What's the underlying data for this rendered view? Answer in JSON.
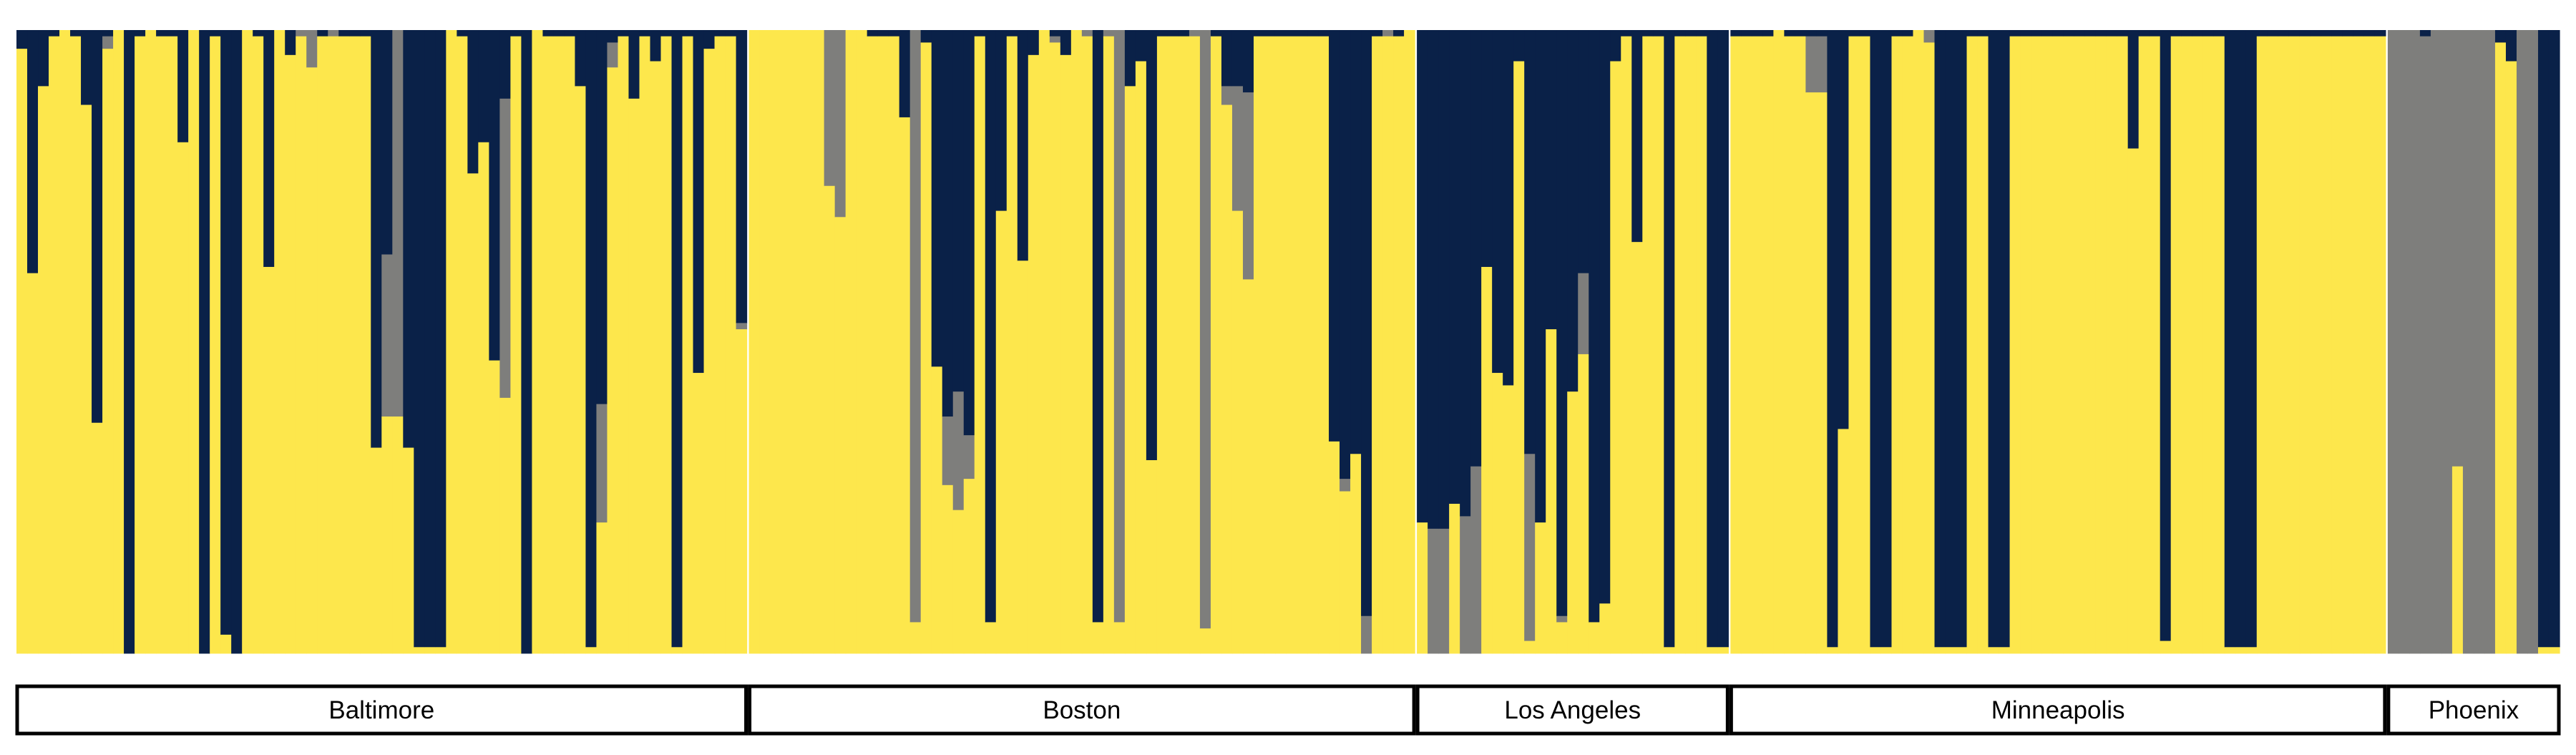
{
  "chart_data": {
    "type": "bar",
    "stacked": true,
    "normalized": true,
    "colors": {
      "yellow": "#FDE74C",
      "navy": "#0A2148",
      "gray": "#7E7E7C"
    },
    "groups": [
      {
        "label": "Baltimore",
        "bars": [
          [
            0.97,
            0.03,
            0
          ],
          [
            0.61,
            0.39,
            0
          ],
          [
            0.91,
            0.09,
            0
          ],
          [
            0.99,
            0.01,
            0
          ],
          [
            1,
            0,
            0
          ],
          [
            0.99,
            0.01,
            0
          ],
          [
            0.88,
            0.12,
            0
          ],
          [
            0.37,
            0.63,
            0
          ],
          [
            0.97,
            0.01,
            0.02
          ],
          [
            1,
            0,
            0
          ],
          [
            0,
            1,
            0
          ],
          [
            0.99,
            0.01,
            0
          ],
          [
            1,
            0,
            0
          ],
          [
            0.99,
            0.01,
            0
          ],
          [
            0.99,
            0.01,
            0
          ],
          [
            0.82,
            0.18,
            0
          ],
          [
            1,
            0,
            0
          ],
          [
            0,
            1,
            0
          ],
          [
            0.99,
            0.01,
            0
          ],
          [
            0.03,
            0.97,
            0
          ],
          [
            0,
            1,
            0
          ],
          [
            1,
            0,
            0
          ],
          [
            0.99,
            0.01,
            0
          ],
          [
            0.62,
            0.38,
            0
          ],
          [
            1,
            0,
            0
          ],
          [
            0.96,
            0.04,
            0
          ],
          [
            0.99,
            0,
            0.01
          ],
          [
            0.94,
            0,
            0.06
          ],
          [
            0.99,
            0.01,
            0
          ],
          [
            0.99,
            0,
            0.01
          ],
          [
            0.99,
            0.01,
            0
          ],
          [
            0.99,
            0.01,
            0
          ],
          [
            0.99,
            0.01,
            0
          ],
          [
            0.33,
            0.67,
            0
          ],
          [
            0.38,
            0.36,
            0.26
          ],
          [
            0.38,
            0,
            0.62
          ],
          [
            0.33,
            0.67,
            0
          ],
          [
            0.01,
            0.99,
            0
          ],
          [
            0.01,
            0.99,
            0
          ],
          [
            0.01,
            0.99,
            0
          ],
          [
            1,
            0,
            0
          ],
          [
            0.99,
            0.01,
            0
          ],
          [
            0.77,
            0.23,
            0
          ],
          [
            0.82,
            0.18,
            0
          ],
          [
            0.47,
            0.53,
            0
          ],
          [
            0.41,
            0.11,
            0.48
          ],
          [
            0.99,
            0.01,
            0
          ],
          [
            0,
            1,
            0
          ],
          [
            1,
            0,
            0
          ],
          [
            0.99,
            0.01,
            0
          ],
          [
            0.99,
            0.01,
            0
          ],
          [
            0.99,
            0.01,
            0
          ],
          [
            0.91,
            0.09,
            0
          ],
          [
            0.01,
            0.99,
            0
          ],
          [
            0.21,
            0.6,
            0.19
          ],
          [
            0.94,
            0.02,
            0.04
          ],
          [
            0.99,
            0.01,
            0
          ],
          [
            0.89,
            0.11,
            0
          ],
          [
            0.99,
            0.01,
            0
          ],
          [
            0.95,
            0.05,
            0
          ],
          [
            0.99,
            0.01,
            0
          ],
          [
            0.01,
            0.99,
            0
          ],
          [
            0.99,
            0.01,
            0
          ],
          [
            0.45,
            0.55,
            0
          ],
          [
            0.97,
            0.03,
            0
          ],
          [
            0.99,
            0.01,
            0
          ],
          [
            0.99,
            0.01,
            0
          ],
          [
            0.52,
            0.47,
            0.01
          ]
        ]
      },
      {
        "label": "Boston",
        "bars": [
          [
            1,
            0,
            0
          ],
          [
            1,
            0,
            0
          ],
          [
            1,
            0,
            0
          ],
          [
            1,
            0,
            0
          ],
          [
            1,
            0,
            0
          ],
          [
            1,
            0,
            0
          ],
          [
            1,
            0,
            0
          ],
          [
            0.75,
            0,
            0.25
          ],
          [
            0.7,
            0,
            0.3
          ],
          [
            1,
            0,
            0
          ],
          [
            1,
            0,
            0
          ],
          [
            0.99,
            0.01,
            0
          ],
          [
            0.99,
            0.01,
            0
          ],
          [
            0.99,
            0.01,
            0
          ],
          [
            0.86,
            0.14,
            0
          ],
          [
            0.05,
            0,
            0.95
          ],
          [
            0.98,
            0.02,
            0
          ],
          [
            0.46,
            0.54,
            0
          ],
          [
            0.27,
            0.62,
            0.11
          ],
          [
            0.23,
            0.58,
            0.19
          ],
          [
            0.28,
            0.65,
            0.07
          ],
          [
            0.99,
            0.01,
            0
          ],
          [
            0.05,
            0.95,
            0
          ],
          [
            0.71,
            0.29,
            0
          ],
          [
            0.99,
            0.01,
            0
          ],
          [
            0.63,
            0.37,
            0
          ],
          [
            0.96,
            0.04,
            0
          ],
          [
            1,
            0,
            0
          ],
          [
            0.98,
            0.01,
            0.01
          ],
          [
            0.96,
            0.04,
            0
          ],
          [
            1,
            0,
            0
          ],
          [
            0.99,
            0,
            0.01
          ],
          [
            0.05,
            0.95,
            0
          ],
          [
            0.99,
            0,
            0.01
          ],
          [
            0.05,
            0,
            0.95
          ],
          [
            0.91,
            0.09,
            0
          ],
          [
            0.95,
            0.05,
            0
          ],
          [
            0.31,
            0.69,
            0
          ],
          [
            0.99,
            0.01,
            0
          ],
          [
            0.99,
            0.01,
            0
          ],
          [
            0.99,
            0.01,
            0
          ],
          [
            0.99,
            0,
            0.01
          ],
          [
            0.04,
            0,
            0.96
          ],
          [
            0.99,
            0.01,
            0
          ],
          [
            0.88,
            0.09,
            0.03
          ],
          [
            0.71,
            0.09,
            0.2
          ],
          [
            0.6,
            0.1,
            0.3
          ],
          [
            0.99,
            0.01,
            0
          ],
          [
            0.99,
            0.01,
            0
          ],
          [
            0.99,
            0.01,
            0
          ],
          [
            0.99,
            0.01,
            0
          ],
          [
            0.99,
            0.01,
            0
          ],
          [
            0.99,
            0.01,
            0
          ],
          [
            0.99,
            0.01,
            0
          ],
          [
            0.34,
            0.66,
            0
          ],
          [
            0.26,
            0.72,
            0.02
          ],
          [
            0.32,
            0.68,
            0
          ],
          [
            0,
            0.94,
            0.06
          ],
          [
            0.99,
            0.01,
            0
          ],
          [
            0.99,
            0,
            0.01
          ],
          [
            0.99,
            0.01,
            0
          ],
          [
            1,
            0,
            0
          ]
        ]
      },
      {
        "label": "Los Angeles",
        "bars": [
          [
            0.21,
            0.79,
            0
          ],
          [
            0,
            0.8,
            0.2
          ],
          [
            0,
            0.8,
            0.2
          ],
          [
            0.24,
            0.76,
            0
          ],
          [
            0,
            0.78,
            0.22
          ],
          [
            0,
            0.7,
            0.3
          ],
          [
            0.62,
            0.38,
            0
          ],
          [
            0.45,
            0.55,
            0
          ],
          [
            0.43,
            0.57,
            0
          ],
          [
            0.95,
            0.05,
            0
          ],
          [
            0.02,
            0.68,
            0.3
          ],
          [
            0.21,
            0.79,
            0
          ],
          [
            0.52,
            0.48,
            0
          ],
          [
            0.05,
            0.94,
            0.01
          ],
          [
            0.42,
            0.58,
            0
          ],
          [
            0.48,
            0.39,
            0.13
          ],
          [
            0.05,
            0.95,
            0
          ],
          [
            0.08,
            0.92,
            0
          ],
          [
            0.95,
            0.05,
            0
          ],
          [
            0.99,
            0.01,
            0
          ],
          [
            0.66,
            0.34,
            0
          ],
          [
            0.99,
            0.01,
            0
          ],
          [
            0.99,
            0.01,
            0
          ],
          [
            0.01,
            0.99,
            0
          ],
          [
            0.99,
            0.01,
            0
          ],
          [
            0.99,
            0.01,
            0
          ],
          [
            0.99,
            0.01,
            0
          ],
          [
            0.01,
            0.99,
            0
          ],
          [
            0.01,
            0.99,
            0
          ]
        ]
      },
      {
        "label": "Minneapolis",
        "bars": [
          [
            0.99,
            0.01,
            0
          ],
          [
            0.99,
            0.01,
            0
          ],
          [
            0.99,
            0.01,
            0
          ],
          [
            0.99,
            0.01,
            0
          ],
          [
            1,
            0,
            0
          ],
          [
            0.99,
            0.01,
            0
          ],
          [
            0.99,
            0.01,
            0
          ],
          [
            0.9,
            0.01,
            0.09
          ],
          [
            0.9,
            0.01,
            0.09
          ],
          [
            0.01,
            0.99,
            0
          ],
          [
            0.36,
            0.64,
            0
          ],
          [
            0.99,
            0.01,
            0
          ],
          [
            0.99,
            0.01,
            0
          ],
          [
            0.01,
            0.99,
            0
          ],
          [
            0.01,
            0.99,
            0
          ],
          [
            0.99,
            0.01,
            0
          ],
          [
            0.99,
            0.01,
            0
          ],
          [
            1,
            0,
            0
          ],
          [
            0.98,
            0,
            0.02
          ],
          [
            0.01,
            0.99,
            0
          ],
          [
            0.01,
            0.99,
            0
          ],
          [
            0.01,
            0.99,
            0
          ],
          [
            0.99,
            0.01,
            0
          ],
          [
            0.99,
            0.01,
            0
          ],
          [
            0.01,
            0.99,
            0
          ],
          [
            0.01,
            0.99,
            0
          ],
          [
            0.99,
            0.01,
            0
          ],
          [
            0.99,
            0.01,
            0
          ],
          [
            0.99,
            0.01,
            0
          ],
          [
            0.99,
            0.01,
            0
          ],
          [
            0.99,
            0.01,
            0
          ],
          [
            0.99,
            0.01,
            0
          ],
          [
            0.99,
            0.01,
            0
          ],
          [
            0.99,
            0.01,
            0
          ],
          [
            0.99,
            0.01,
            0
          ],
          [
            0.99,
            0.01,
            0
          ],
          [
            0.99,
            0.01,
            0
          ],
          [
            0.81,
            0.19,
            0
          ],
          [
            0.99,
            0.01,
            0
          ],
          [
            0.99,
            0.01,
            0
          ],
          [
            0.02,
            0.98,
            0
          ],
          [
            0.99,
            0.01,
            0
          ],
          [
            0.99,
            0.01,
            0
          ],
          [
            0.99,
            0.01,
            0
          ],
          [
            0.99,
            0.01,
            0
          ],
          [
            0.99,
            0.01,
            0
          ],
          [
            0.01,
            0.99,
            0
          ],
          [
            0.01,
            0.99,
            0
          ],
          [
            0.01,
            0.99,
            0
          ],
          [
            0.99,
            0.01,
            0
          ],
          [
            0.99,
            0.01,
            0
          ],
          [
            0.99,
            0.01,
            0
          ],
          [
            0.99,
            0.01,
            0
          ],
          [
            0.99,
            0.01,
            0
          ],
          [
            0.99,
            0.01,
            0
          ],
          [
            0.99,
            0.01,
            0
          ],
          [
            0.99,
            0.01,
            0
          ],
          [
            0.99,
            0.01,
            0
          ],
          [
            0.99,
            0.01,
            0
          ],
          [
            0.99,
            0.01,
            0
          ],
          [
            0.99,
            0.01,
            0
          ]
        ]
      },
      {
        "label": "Phoenix",
        "bars": [
          [
            0,
            0,
            1
          ],
          [
            0,
            0,
            1
          ],
          [
            0,
            0,
            1
          ],
          [
            0,
            0.01,
            0.99
          ],
          [
            0,
            0,
            1
          ],
          [
            0,
            0,
            1
          ],
          [
            0.3,
            0,
            0.7
          ],
          [
            0,
            0,
            1
          ],
          [
            0,
            0,
            1
          ],
          [
            0,
            0,
            1
          ],
          [
            0.98,
            0.02,
            0
          ],
          [
            0.95,
            0.05,
            0
          ],
          [
            0,
            0,
            1
          ],
          [
            0,
            0,
            1
          ],
          [
            0.01,
            0.99,
            0
          ],
          [
            0.01,
            0.99,
            0
          ]
        ]
      }
    ]
  }
}
